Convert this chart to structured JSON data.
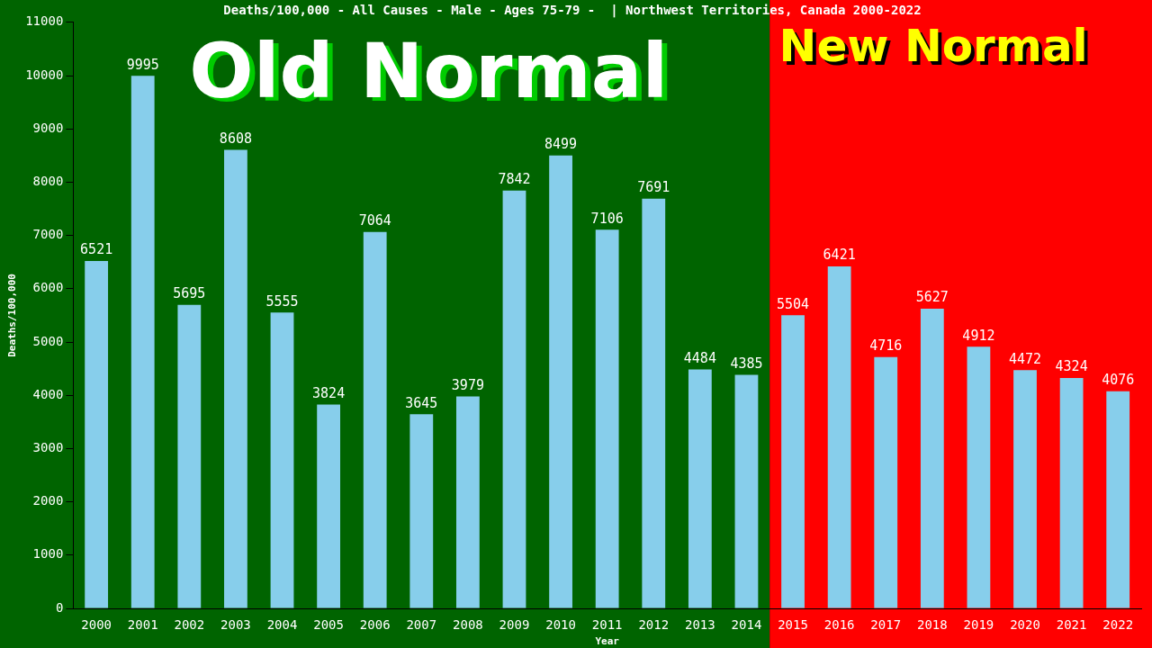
{
  "chart_data": {
    "type": "bar",
    "title": "Deaths/100,000 - All Causes - Male - Ages 75-79 -  | Northwest Territories, Canada 2000-2022",
    "xlabel": "Year",
    "ylabel": "Deaths/100,000",
    "categories": [
      "2000",
      "2001",
      "2002",
      "2003",
      "2004",
      "2005",
      "2006",
      "2007",
      "2008",
      "2009",
      "2010",
      "2011",
      "2012",
      "2013",
      "2014",
      "2015",
      "2016",
      "2017",
      "2018",
      "2019",
      "2020",
      "2021",
      "2022"
    ],
    "values": [
      6521,
      9995,
      5695,
      8608,
      5555,
      3824,
      7064,
      3645,
      3979,
      7842,
      8499,
      7106,
      7691,
      4484,
      4385,
      5504,
      6421,
      4716,
      5627,
      4912,
      4472,
      4324,
      4076
    ],
    "color": "#87ceeb",
    "data_labels": true,
    "ylim": [
      0,
      11000
    ],
    "yticks": [
      0,
      1000,
      2000,
      3000,
      4000,
      5000,
      6000,
      7000,
      8000,
      9000,
      10000,
      11000
    ],
    "bands": [
      {
        "axis": "x",
        "from": "2000",
        "to": "2014",
        "label": "Old Normal",
        "color": "#006400"
      },
      {
        "axis": "x",
        "from": "2015",
        "to": "2022",
        "label": "New Normal",
        "color": "#ff0000"
      }
    ],
    "grid": false,
    "legend": false
  }
}
